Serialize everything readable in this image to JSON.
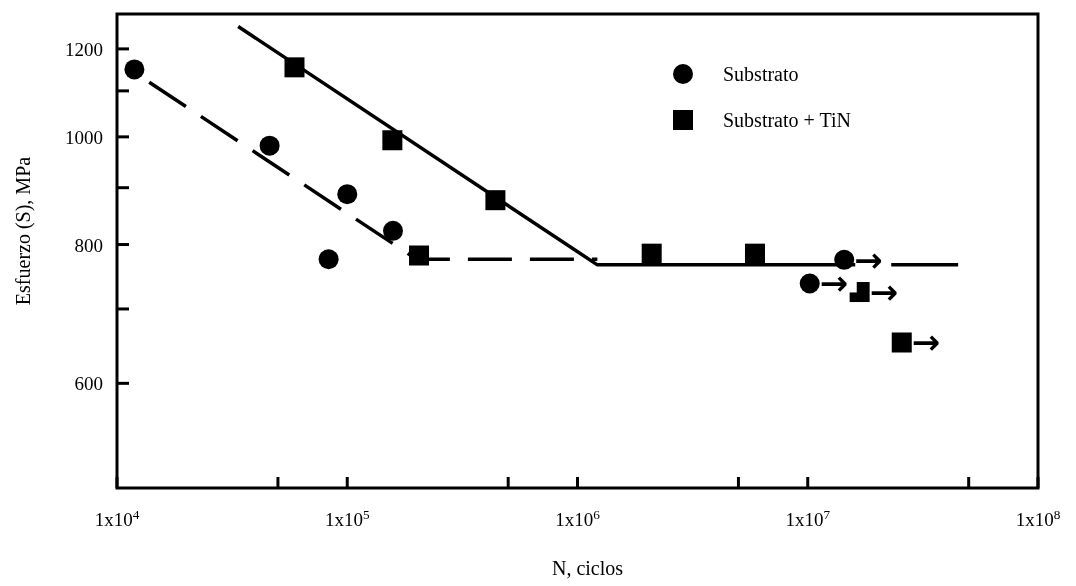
{
  "chart_data": {
    "type": "scatter",
    "xlabel": "N, ciclos",
    "ylabel": "Esfuerzo (S), MPa",
    "log": "xy",
    "xlim": [
      10000,
      100000000
    ],
    "ylim": [
      483,
      1290
    ],
    "xticks": [
      {
        "value": 10000,
        "label": "1x10$^{4}$"
      },
      {
        "value": 50000,
        "label": null
      },
      {
        "value": 100000,
        "label": "1x10$^{5}$"
      },
      {
        "value": 500000,
        "label": null
      },
      {
        "value": 1000000,
        "label": "1x10$^{6}$"
      },
      {
        "value": 5000000,
        "label": null
      },
      {
        "value": 10000000,
        "label": "1x10$^{7}$"
      },
      {
        "value": 50000000,
        "label": null
      },
      {
        "value": 100000000,
        "label": "1x10$^{8}$"
      }
    ],
    "yticks": [
      600,
      {
        "value": 700,
        "label": null
      },
      800,
      {
        "value": 900,
        "label": null
      },
      1000,
      {
        "value": 1100,
        "label": null
      },
      1200
    ],
    "grid": false,
    "legend": "top right",
    "series": [
      {
        "name": "Substrato",
        "color": "#000000",
        "marker": "circle",
        "x": [
          11900,
          46000,
          100000,
          158000,
          83000,
          14400000,
          10200000
        ],
        "values": [
          1150,
          982,
          888,
          823,
          776,
          775,
          738
        ]
      },
      {
        "name": "Substrato + TiN",
        "color": "#000000",
        "marker": "square",
        "x": [
          59000,
          157000,
          440000,
          205000,
          2100000,
          5900000,
          16800000,
          25600000
        ],
        "values": [
          1155,
          993,
          877,
          782,
          785,
          785,
          725,
          653
        ]
      },
      {
        "type": "line",
        "color": "#000000",
        "line_style": "dashed",
        "x": [
          13800,
          200000,
          1220000
        ],
        "values": [
          1120,
          776,
          776
        ]
      },
      {
        "type": "line",
        "color": "#000000",
        "line_style": "solid",
        "x": [
          33600,
          1220000,
          45000000
        ],
        "values": [
          1257,
          767,
          767
        ]
      }
    ],
    "annotations": [
      {
        "text": "→",
        "x": 14400000,
        "y": 775
      },
      {
        "text": "→",
        "x": 10200000,
        "y": 738
      },
      {
        "text": "→",
        "x": 16800000,
        "y": 725
      },
      {
        "text": "→",
        "x": 25600000,
        "y": 653
      }
    ]
  }
}
